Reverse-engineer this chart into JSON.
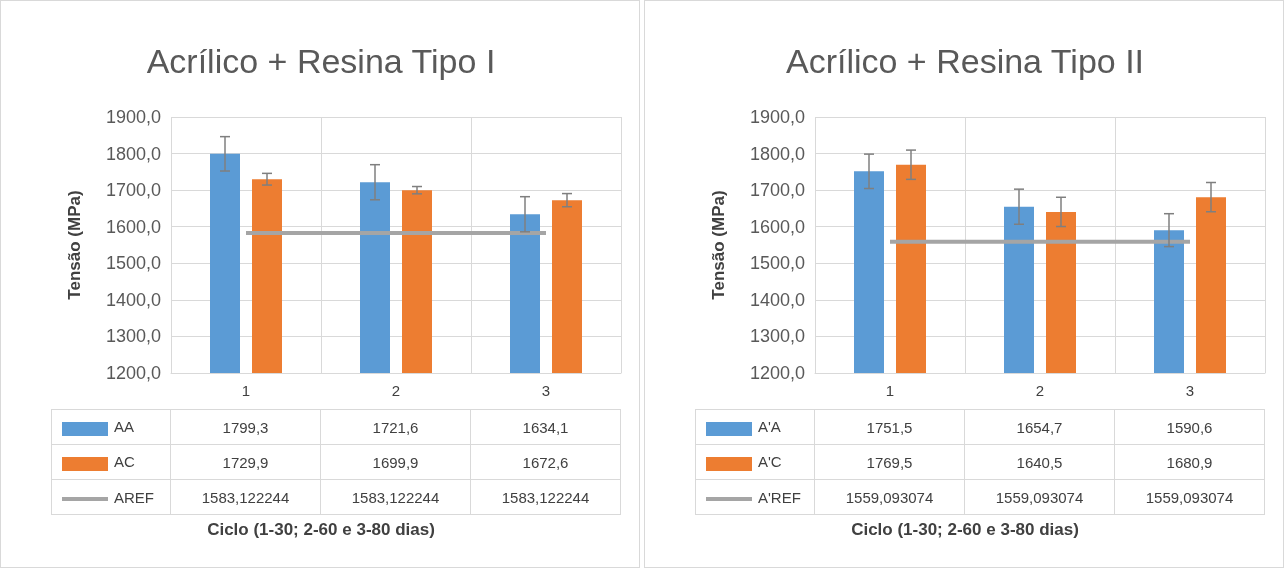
{
  "chart_data": [
    {
      "type": "bar",
      "title": "Acrílico + Resina Tipo I",
      "xlabel": "Ciclo (1-30; 2-60 e 3-80 dias)",
      "ylabel": "Tensão (MPa)",
      "categories": [
        "1",
        "2",
        "3"
      ],
      "ylim": [
        1200,
        1900
      ],
      "yticks": [
        {
          "value": 1200,
          "label": "1200,0"
        },
        {
          "value": 1300,
          "label": "1300,0"
        },
        {
          "value": 1400,
          "label": "1400,0"
        },
        {
          "value": 1500,
          "label": "1500,0"
        },
        {
          "value": 1600,
          "label": "1600,0"
        },
        {
          "value": 1700,
          "label": "1700,0"
        },
        {
          "value": 1800,
          "label": "1800,0"
        },
        {
          "value": 1900,
          "label": "1900,0"
        }
      ],
      "grid": true,
      "legend": "bottom",
      "series": [
        {
          "name": "AA",
          "color": "#5b9bd5",
          "values": [
            1799.3,
            1721.6,
            1634.1
          ],
          "errors": [
            47,
            48,
            48
          ],
          "value_labels": [
            "1799,3",
            "1721,6",
            "1634,1"
          ]
        },
        {
          "name": "AC",
          "color": "#ed7d31",
          "values": [
            1729.9,
            1699.9,
            1672.6
          ],
          "errors": [
            16,
            10,
            18
          ],
          "value_labels": [
            "1729,9",
            "1699,9",
            "1672,6"
          ]
        },
        {
          "name": "AREF",
          "type": "line",
          "color": "#a5a5a5",
          "marker": "none",
          "values": [
            1583.122244,
            1583.122244,
            1583.122244
          ],
          "value_labels": [
            "1583,122244",
            "1583,122244",
            "1583,122244"
          ]
        }
      ]
    },
    {
      "type": "bar",
      "title": "Acrílico + Resina Tipo II",
      "xlabel": "Ciclo (1-30; 2-60 e 3-80 dias)",
      "ylabel": "Tensão (MPa)",
      "categories": [
        "1",
        "2",
        "3"
      ],
      "ylim": [
        1200,
        1900
      ],
      "yticks": [
        {
          "value": 1200,
          "label": "1200,0"
        },
        {
          "value": 1300,
          "label": "1300,0"
        },
        {
          "value": 1400,
          "label": "1400,0"
        },
        {
          "value": 1500,
          "label": "1500,0"
        },
        {
          "value": 1600,
          "label": "1600,0"
        },
        {
          "value": 1700,
          "label": "1700,0"
        },
        {
          "value": 1800,
          "label": "1800,0"
        },
        {
          "value": 1900,
          "label": "1900,0"
        }
      ],
      "grid": true,
      "legend": "bottom",
      "series": [
        {
          "name": "A'A",
          "color": "#5b9bd5",
          "values": [
            1751.5,
            1654.7,
            1590.6
          ],
          "errors": [
            47,
            48,
            45
          ],
          "value_labels": [
            "1751,5",
            "1654,7",
            "1590,6"
          ]
        },
        {
          "name": "A'C",
          "color": "#ed7d31",
          "values": [
            1769.5,
            1640.5,
            1680.9
          ],
          "errors": [
            40,
            40,
            40
          ],
          "value_labels": [
            "1769,5",
            "1640,5",
            "1680,9"
          ]
        },
        {
          "name": "A'REF",
          "type": "line",
          "color": "#a5a5a5",
          "marker": "none",
          "values": [
            1559.093074,
            1559.093074,
            1559.093074
          ],
          "value_labels": [
            "1559,093074",
            "1559,093074",
            "1559,093074"
          ]
        }
      ]
    }
  ]
}
